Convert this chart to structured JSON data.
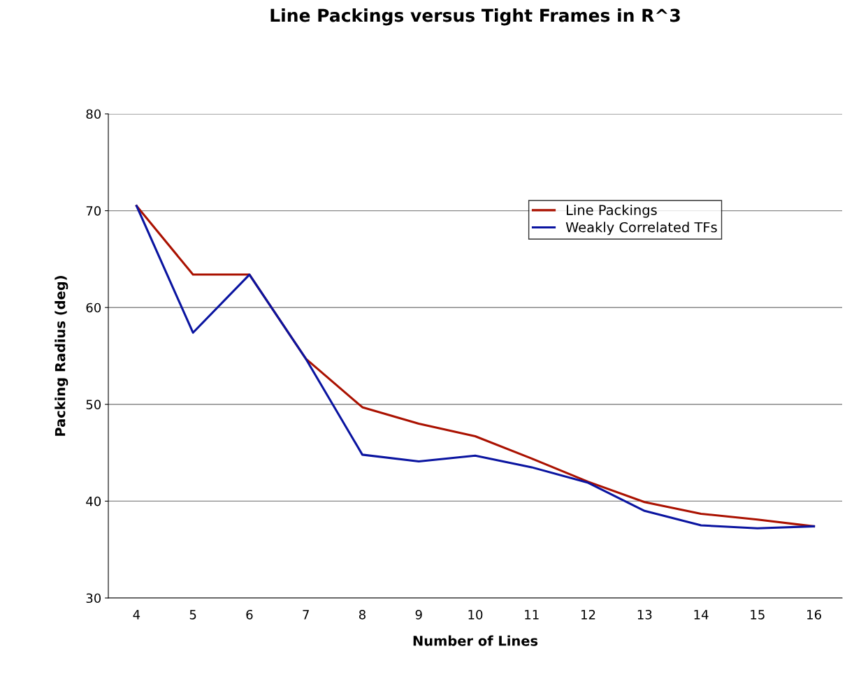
{
  "chart_data": {
    "type": "line",
    "title": "Line Packings versus Tight Frames in R^3",
    "xlabel": "Number of Lines",
    "ylabel": "Packing Radius (deg)",
    "categories": [
      "4",
      "5",
      "6",
      "7",
      "8",
      "9",
      "10",
      "11",
      "12",
      "13",
      "14",
      "15",
      "16"
    ],
    "series": [
      {
        "name": "Line Packings",
        "color": "#aa1100",
        "values": [
          70.5,
          63.4,
          63.4,
          54.7,
          49.7,
          48.0,
          46.7,
          44.4,
          42.0,
          39.9,
          38.7,
          38.1,
          37.4
        ]
      },
      {
        "name": "Weakly Correlated TFs",
        "color": "#0a14a0",
        "values": [
          70.5,
          57.4,
          63.4,
          54.7,
          44.8,
          44.1,
          44.7,
          43.5,
          41.9,
          39.0,
          37.5,
          37.2,
          37.4
        ]
      }
    ],
    "ylim": [
      30,
      80
    ],
    "yticks": [
      30,
      40,
      50,
      60,
      70,
      80
    ],
    "grid": "y",
    "legend": "top right",
    "marker": "none",
    "line_style": "solid"
  }
}
